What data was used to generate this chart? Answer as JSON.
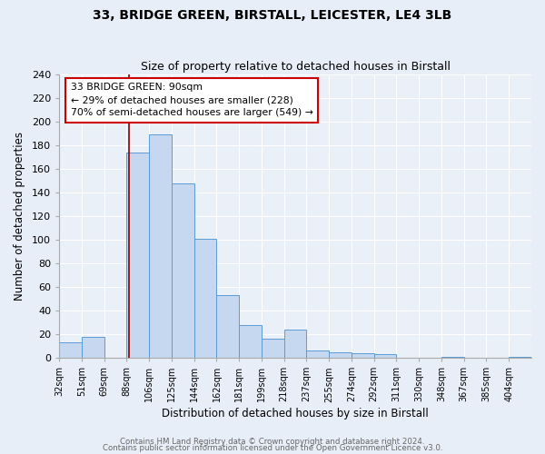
{
  "title": "33, BRIDGE GREEN, BIRSTALL, LEICESTER, LE4 3LB",
  "subtitle": "Size of property relative to detached houses in Birstall",
  "xlabel": "Distribution of detached houses by size in Birstall",
  "ylabel": "Number of detached properties",
  "footer_line1": "Contains HM Land Registry data © Crown copyright and database right 2024.",
  "footer_line2": "Contains public sector information licensed under the Open Government Licence v3.0.",
  "bin_labels": [
    "32sqm",
    "51sqm",
    "69sqm",
    "88sqm",
    "106sqm",
    "125sqm",
    "144sqm",
    "162sqm",
    "181sqm",
    "199sqm",
    "218sqm",
    "237sqm",
    "255sqm",
    "274sqm",
    "292sqm",
    "311sqm",
    "330sqm",
    "348sqm",
    "367sqm",
    "385sqm",
    "404sqm"
  ],
  "bar_heights": [
    13,
    18,
    0,
    174,
    189,
    148,
    101,
    53,
    28,
    16,
    24,
    6,
    5,
    4,
    3,
    0,
    0,
    1,
    0,
    0,
    1
  ],
  "bar_color": "#c5d8f0",
  "bar_edge_color": "#5b9bd5",
  "property_bin_index": 3,
  "annotation_line1": "33 BRIDGE GREEN: 90sqm",
  "annotation_line2": "← 29% of detached houses are smaller (228)",
  "annotation_line3": "70% of semi-detached houses are larger (549) →",
  "annotation_box_color": "#ffffff",
  "annotation_box_edge": "#cc0000",
  "property_line_color": "#8b0000",
  "ylim": [
    0,
    240
  ],
  "bg_color": "#e8eef7",
  "plot_bg_color": "#eaf0f8",
  "grid_color": "#ffffff",
  "title_fontsize": 10,
  "subtitle_fontsize": 9
}
